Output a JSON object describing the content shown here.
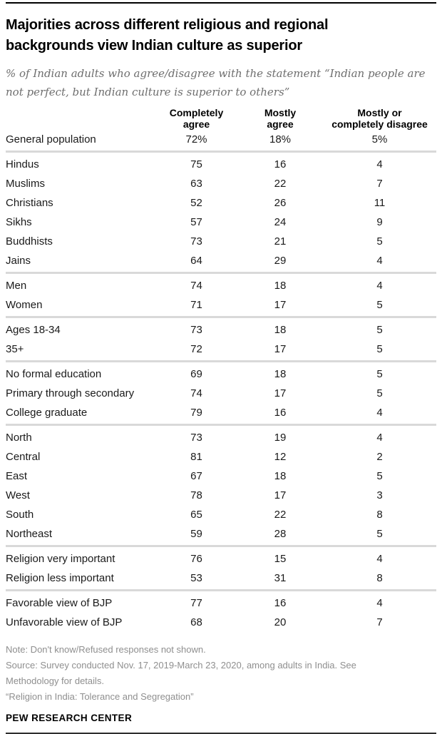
{
  "chart_data": {
    "type": "table",
    "title": "Majorities across different religious and regional backgrounds view Indian culture as superior",
    "title_lines": [
      "Majorities across different religious and regional",
      "backgrounds view Indian culture as superior"
    ],
    "subtitle_lines": [
      "% of Indian adults who agree/disagree with the statement “Indian people are",
      "not perfect, but Indian culture is superior to others”"
    ],
    "columns": [
      {
        "line1": "Completely",
        "line2": "agree"
      },
      {
        "line1": "Mostly",
        "line2": "agree"
      },
      {
        "line1": "Mostly or",
        "line2": "completely disagree"
      }
    ],
    "groups": [
      {
        "rows": [
          {
            "label": "General population",
            "cells": [
              "72%",
              "18%",
              "5%"
            ]
          }
        ]
      },
      {
        "rows": [
          {
            "label": "Hindus",
            "cells": [
              "75",
              "16",
              "4"
            ]
          },
          {
            "label": "Muslims",
            "cells": [
              "63",
              "22",
              "7"
            ]
          },
          {
            "label": "Christians",
            "cells": [
              "52",
              "26",
              "11"
            ]
          },
          {
            "label": "Sikhs",
            "cells": [
              "57",
              "24",
              "9"
            ]
          },
          {
            "label": "Buddhists",
            "cells": [
              "73",
              "21",
              "5"
            ]
          },
          {
            "label": "Jains",
            "cells": [
              "64",
              "29",
              "4"
            ]
          }
        ]
      },
      {
        "rows": [
          {
            "label": "Men",
            "cells": [
              "74",
              "18",
              "4"
            ]
          },
          {
            "label": "Women",
            "cells": [
              "71",
              "17",
              "5"
            ]
          }
        ]
      },
      {
        "rows": [
          {
            "label": "Ages 18-34",
            "cells": [
              "73",
              "18",
              "5"
            ]
          },
          {
            "label": "35+",
            "cells": [
              "72",
              "17",
              "5"
            ]
          }
        ]
      },
      {
        "rows": [
          {
            "label": "No formal education",
            "cells": [
              "69",
              "18",
              "5"
            ]
          },
          {
            "label": "Primary through secondary",
            "cells": [
              "74",
              "17",
              "5"
            ]
          },
          {
            "label": "College graduate",
            "cells": [
              "79",
              "16",
              "4"
            ]
          }
        ]
      },
      {
        "rows": [
          {
            "label": "North",
            "cells": [
              "73",
              "19",
              "4"
            ]
          },
          {
            "label": "Central",
            "cells": [
              "81",
              "12",
              "2"
            ]
          },
          {
            "label": "East",
            "cells": [
              "67",
              "18",
              "5"
            ]
          },
          {
            "label": "West",
            "cells": [
              "78",
              "17",
              "3"
            ]
          },
          {
            "label": "South",
            "cells": [
              "65",
              "22",
              "8"
            ]
          },
          {
            "label": "Northeast",
            "cells": [
              "59",
              "28",
              "5"
            ]
          }
        ]
      },
      {
        "rows": [
          {
            "label": "Religion very important",
            "cells": [
              "76",
              "15",
              "4"
            ]
          },
          {
            "label": "Religion less important",
            "cells": [
              "53",
              "31",
              "8"
            ]
          }
        ]
      },
      {
        "rows": [
          {
            "label": "Favorable view of BJP",
            "cells": [
              "77",
              "16",
              "4"
            ]
          },
          {
            "label": "Unfavorable view of BJP",
            "cells": [
              "68",
              "20",
              "7"
            ]
          }
        ]
      }
    ],
    "notes_lines": [
      "Note: Don't know/Refused responses not shown.",
      "Source: Survey conducted Nov. 17, 2019-March 23, 2020, among adults in India. See",
      "Methodology for details.",
      "“Religion in India: Tolerance and Segregation”"
    ],
    "footer": "PEW RESEARCH CENTER",
    "layout": {
      "legend_position": "none",
      "grid": "off"
    }
  },
  "colors": {
    "separator": "#d9d9d9",
    "subtitle_text": "#6e6e6e",
    "note_text": "#8f8f8f",
    "rule_top": "#000000",
    "rule_bottom": "#2e2e2e"
  }
}
